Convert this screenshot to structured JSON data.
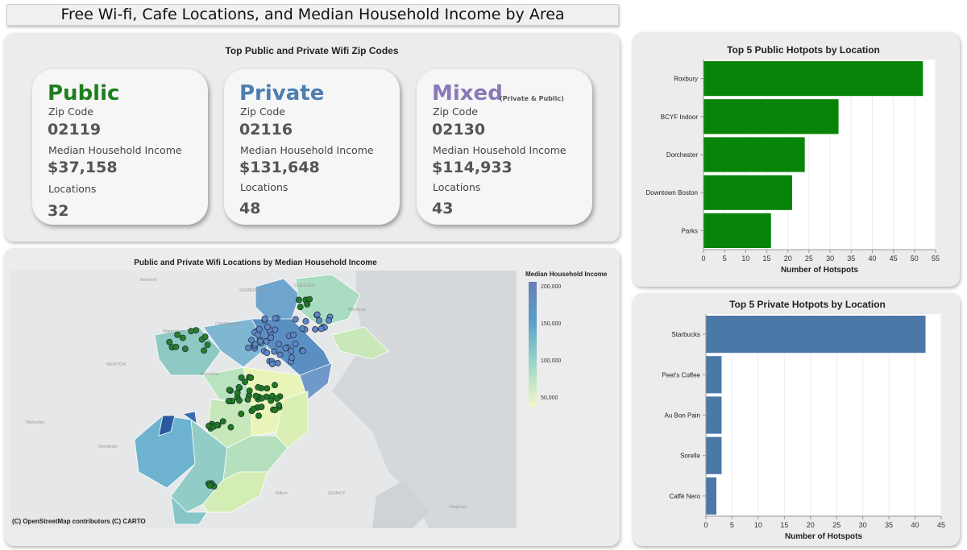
{
  "dashboard": {
    "title": "Free Wi-fi, Cafe Locations, and Median Household Income by Area"
  },
  "summary": {
    "title": "Top Public and Private Wifi Zip Codes",
    "cards": [
      {
        "heading": "Public",
        "note": "",
        "color": "#1e7f1e",
        "zip_label": "Zip Code",
        "zip": "02119",
        "income_label": "Median Household Income",
        "income": "$37,158",
        "locations_label": "Locations",
        "locations": "32"
      },
      {
        "heading": "Private",
        "note": "",
        "color": "#4e7eb0",
        "zip_label": "Zip Code",
        "zip": "02116",
        "income_label": "Median Household Income",
        "income": "$131,648",
        "locations_label": "Locations",
        "locations": "48"
      },
      {
        "heading": "Mixed",
        "note": "(Private & Public)",
        "color": "#8a78b8",
        "zip_label": "Zip Code",
        "zip": "02130",
        "income_label": "Median Household Income",
        "income": "$114,933",
        "locations_label": "Locations",
        "locations": "43"
      }
    ]
  },
  "map": {
    "title": "Public and Private Wifi Locations by Median Household Income",
    "attribution": "(C) OpenStreetMap contributors (C) CARTO",
    "place_labels": [
      "Belmont",
      "SOMERVILLE",
      "CHELSEA",
      "Winthrop",
      "CAMBRIDGE",
      "Watertown",
      "NEWTON",
      "Brookline",
      "Wellesley",
      "Needham",
      "Milton",
      "QUINCY",
      "Hingham"
    ],
    "legend": {
      "title": "Median Household Income",
      "ticks": [
        "200,000",
        "150,000",
        "100,000",
        "50,000"
      ]
    }
  },
  "chart_data": [
    {
      "type": "bar",
      "orientation": "horizontal",
      "title": "Top 5 Public Hotpots by Location",
      "xlabel": "Number of Hotspots",
      "ylabel": "",
      "categories": [
        "Roxbury",
        "BCYF Indoor",
        "Dorchester",
        "Downtown Boston",
        "Parks"
      ],
      "values": [
        52,
        32,
        24,
        21,
        16
      ],
      "xlim": [
        0,
        55
      ],
      "ticks": [
        "0",
        "5",
        "10",
        "15",
        "20",
        "25",
        "30",
        "35",
        "40",
        "45",
        "50",
        "55"
      ],
      "color": "#088408"
    },
    {
      "type": "bar",
      "orientation": "horizontal",
      "title": "Top 5 Private Hotpots by Location",
      "xlabel": "Number of Hotspots",
      "ylabel": "",
      "categories": [
        "Starbucks",
        "Peet's Coffee",
        "Au Bon Pain",
        "Sorelle",
        "Caffè Nero"
      ],
      "values": [
        42,
        3,
        3,
        3,
        2
      ],
      "xlim": [
        0,
        45
      ],
      "ticks": [
        "0",
        "5",
        "10",
        "15",
        "20",
        "25",
        "30",
        "35",
        "40",
        "45"
      ],
      "color": "#4c78a8"
    }
  ]
}
